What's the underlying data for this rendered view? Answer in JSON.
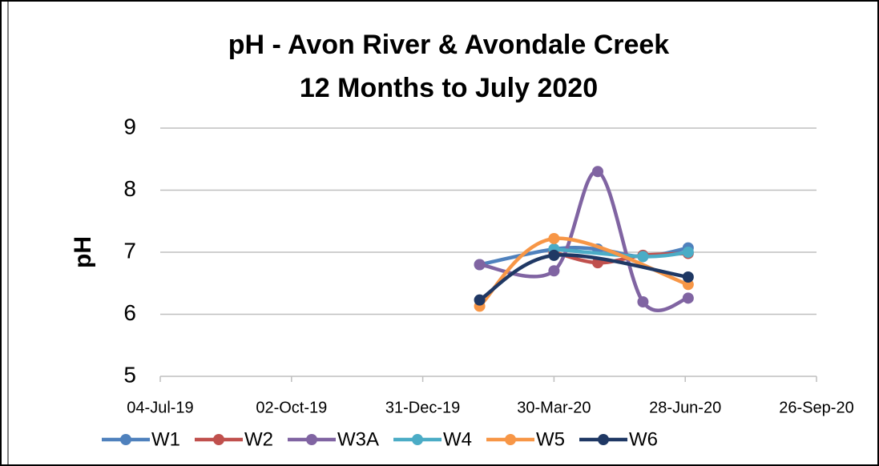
{
  "chart_data": {
    "type": "line",
    "title": "pH - Avon River & Avondale Creek",
    "subtitle": "12 Months to July 2020",
    "y_label": "pH",
    "ylim": [
      5,
      9
    ],
    "yticks": [
      5,
      6,
      7,
      8,
      9
    ],
    "xlim": [
      "2019-07-04",
      "2020-09-26"
    ],
    "xticks": [
      {
        "value": "2019-07-04",
        "label": "04-Jul-19"
      },
      {
        "value": "2019-10-02",
        "label": "02-Oct-19"
      },
      {
        "value": "2019-12-31",
        "label": "31-Dec-19"
      },
      {
        "value": "2020-03-30",
        "label": "30-Mar-20"
      },
      {
        "value": "2020-06-28",
        "label": "28-Jun-20"
      },
      {
        "value": "2020-09-26",
        "label": "26-Sep-20"
      }
    ],
    "grid": true,
    "smooth": true,
    "legend": "bottom",
    "series": [
      {
        "name": "W1",
        "color": "#4f81bd",
        "x": [
          "2020-02-08",
          "2020-03-30",
          "2020-04-29",
          "2020-05-30",
          "2020-06-30"
        ],
        "values": [
          6.8,
          7.05,
          7.05,
          6.93,
          7.07
        ]
      },
      {
        "name": "W2",
        "color": "#c0504d",
        "x": [
          "2020-03-30",
          "2020-04-29",
          "2020-05-30",
          "2020-06-30"
        ],
        "values": [
          7.0,
          6.83,
          6.95,
          6.98
        ]
      },
      {
        "name": "W3A",
        "color": "#8064a2",
        "x": [
          "2020-02-08",
          "2020-03-30",
          "2020-04-29",
          "2020-05-30",
          "2020-06-30"
        ],
        "values": [
          6.8,
          6.7,
          8.3,
          6.2,
          6.26
        ]
      },
      {
        "name": "W4",
        "color": "#4bacc6",
        "x": [
          "2020-03-30",
          "2020-05-30",
          "2020-06-30"
        ],
        "values": [
          7.05,
          6.93,
          7.0
        ]
      },
      {
        "name": "W5",
        "color": "#f79646",
        "x": [
          "2020-02-08",
          "2020-03-30",
          "2020-06-30"
        ],
        "values": [
          6.13,
          7.22,
          6.48
        ]
      },
      {
        "name": "W6",
        "color": "#1f3864",
        "x": [
          "2020-02-08",
          "2020-03-30",
          "2020-06-30"
        ],
        "values": [
          6.23,
          6.95,
          6.6
        ]
      }
    ]
  }
}
